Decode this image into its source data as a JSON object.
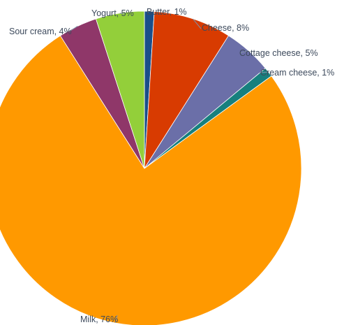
{
  "chart_data": {
    "type": "pie",
    "series": [
      {
        "values": [
          {
            "name": "Butter",
            "value": 1,
            "label": "Butter, 1%",
            "color": "#1a4e8a"
          },
          {
            "name": "Cheese",
            "value": 8,
            "label": "Cheese, 8%",
            "color": "#d83b01"
          },
          {
            "name": "Cottage cheese",
            "value": 5,
            "label": "Cottage cheese, 5%",
            "color": "#6b6fa8"
          },
          {
            "name": "Cream cheese",
            "value": 1,
            "label": "Cream cheese, 1%",
            "color": "#17807e"
          },
          {
            "name": "Milk",
            "value": 76,
            "label": "Milk, 76%",
            "color": "#ff9900"
          },
          {
            "name": "Sour cream",
            "value": 4,
            "label": "Sour cream, 4%",
            "color": "#8f3769"
          },
          {
            "name": "Yogurt",
            "value": 5,
            "label": "Yogurt, 5%",
            "color": "#93cf3a"
          }
        ]
      }
    ],
    "start_angle": "12 o'clock",
    "direction": "clockwise",
    "legend": "none",
    "data_labels": "outside with leader lines"
  }
}
